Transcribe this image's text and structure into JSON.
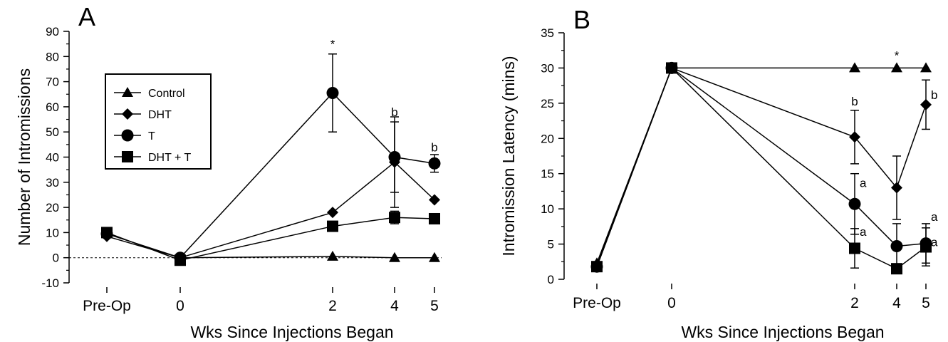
{
  "chart_data": [
    {
      "type": "line",
      "panel_label": "A",
      "xlabel": "Wks Since Injections Began",
      "ylabel": "Number of Intromissions",
      "x_categories": [
        "Pre-Op",
        "0",
        "2",
        "4",
        "5"
      ],
      "ylim": [
        -10,
        90
      ],
      "yticks": [
        "-10",
        "0",
        "10",
        "20",
        "30",
        "40",
        "50",
        "60",
        "70",
        "80",
        "90"
      ],
      "zero_reference_line": "dashed",
      "legend_position": "left",
      "series": [
        {
          "name": "Control",
          "marker": "triangle",
          "values": [
            null,
            0,
            0.5,
            0,
            0
          ],
          "errors": [
            null,
            null,
            null,
            null,
            null
          ]
        },
        {
          "name": "DHT",
          "marker": "diamond",
          "values": [
            8.5,
            0,
            18,
            38,
            23
          ],
          "errors": [
            null,
            null,
            null,
            18,
            null
          ]
        },
        {
          "name": "T",
          "marker": "circle",
          "values": [
            9.5,
            0,
            65.5,
            40,
            37.5
          ],
          "errors": [
            null,
            null,
            15.5,
            14,
            3.5
          ]
        },
        {
          "name": "DHT + T",
          "marker": "square",
          "values": [
            10,
            -1,
            12.5,
            16,
            15.5
          ],
          "errors": [
            null,
            null,
            null,
            2.5,
            null
          ]
        }
      ],
      "annotations": [
        {
          "text": "*",
          "x": "2",
          "y": 85
        },
        {
          "text": "b",
          "x": "4",
          "y": 58
        },
        {
          "text": "b",
          "x": "5",
          "y": 44
        }
      ]
    },
    {
      "type": "line",
      "panel_label": "B",
      "xlabel": "Wks Since Injections Began",
      "ylabel": "Intromission Latency (mins)",
      "x_categories": [
        "Pre-Op",
        "0",
        "2",
        "4",
        "5"
      ],
      "ylim": [
        0,
        35
      ],
      "yticks": [
        "0",
        "5",
        "10",
        "15",
        "20",
        "25",
        "30",
        "35"
      ],
      "series": [
        {
          "name": "Control",
          "marker": "triangle",
          "values": [
            2.3,
            30,
            30,
            30,
            30
          ],
          "errors": [
            null,
            null,
            null,
            null,
            null
          ]
        },
        {
          "name": "DHT",
          "marker": "diamond",
          "values": [
            2.0,
            30,
            20.2,
            13,
            24.8
          ],
          "errors": [
            null,
            null,
            3.8,
            4.5,
            3.5
          ]
        },
        {
          "name": "T",
          "marker": "circle",
          "values": [
            1.8,
            30,
            10.7,
            4.7,
            5.1
          ],
          "errors": [
            null,
            null,
            4.3,
            3.2,
            2.8
          ]
        },
        {
          "name": "DHT + T",
          "marker": "square",
          "values": [
            1.8,
            30,
            4.4,
            1.5,
            4.6
          ],
          "errors": [
            null,
            null,
            2.8,
            null,
            2.7
          ]
        }
      ],
      "annotations": [
        {
          "text": "*",
          "x": "4",
          "y": 31.8
        },
        {
          "text": "b",
          "x": "2",
          "y": 25.3
        },
        {
          "text": "b",
          "x": "5",
          "y": 26.2
        },
        {
          "text": "a",
          "x": "2",
          "y": 13.7
        },
        {
          "text": "a",
          "x": "2",
          "y": 6.8
        },
        {
          "text": "a",
          "x": "5",
          "y": 8.9
        },
        {
          "text": "a",
          "x": "5",
          "y": 5.3
        }
      ]
    }
  ]
}
